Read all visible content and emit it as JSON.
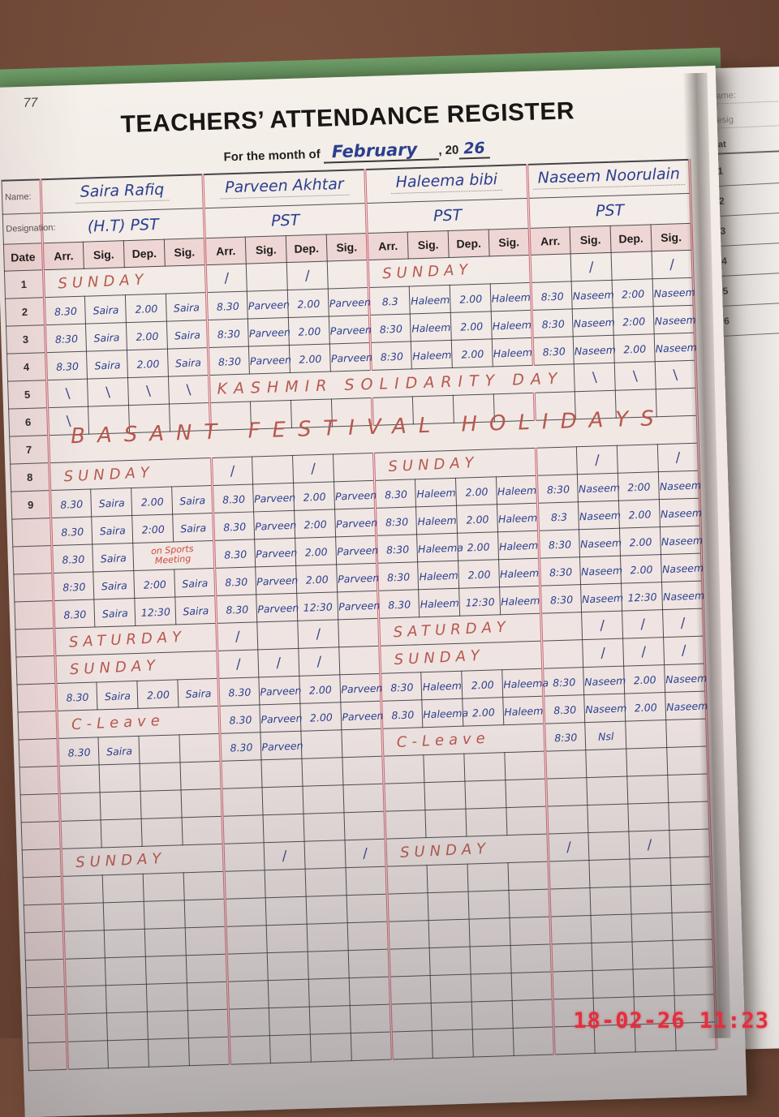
{
  "photo": {
    "page_number": "77",
    "timestamp": "18-02-26 11:23"
  },
  "colors": {
    "ink_blue": "#2b3f8e",
    "holiday_red": "#b8574d",
    "note_red": "#d0493a",
    "timestamp_red": "#e22f3e",
    "cover_green": "#5f8d5b",
    "background_brown": "#6e4736"
  },
  "register": {
    "title": "TEACHERS’ ATTENDANCE REGISTER",
    "month_label": "For the month of",
    "month_value": "February",
    "year_prefix": ", 20",
    "year_value": "26",
    "name_label": "Name:",
    "designation_label": "Designation:",
    "date_header": "Date",
    "col_headers": [
      "Arr.",
      "Sig.",
      "Dep.",
      "Sig."
    ],
    "teachers": [
      {
        "name": "Saira Rafiq",
        "designation": "(H.T)  PST"
      },
      {
        "name": "Parveen Akhtar",
        "designation": "PST"
      },
      {
        "name": "Haleema bibi",
        "designation": "PST"
      },
      {
        "name": "Naseem Noorulain",
        "designation": "PST"
      }
    ],
    "rows": [
      {
        "d": "1",
        "c": [
          {
            "t": "SUNDAY",
            "s": 4,
            "k": "hol"
          },
          "/",
          "",
          "/",
          "",
          {
            "t": "SUNDAY",
            "s": 4,
            "k": "hol"
          },
          "",
          "/",
          "",
          "/"
        ]
      },
      {
        "d": "2",
        "c": [
          "8.30",
          "Saira",
          "2.00",
          "Saira",
          "8.30",
          "Parveen",
          "2.00",
          "Parveen",
          "8.3",
          "Haleem",
          "2.00",
          "Haleem",
          "8:30",
          "Naseem",
          "2:00",
          "Naseem"
        ]
      },
      {
        "d": "3",
        "c": [
          "8:30",
          "Saira",
          "2.00",
          "Saira",
          "8:30",
          "Parveen",
          "2.00",
          "Parveen",
          "8:30",
          "Haleem",
          "2.00",
          "Haleem",
          "8:30",
          "Naseem",
          "2:00",
          "Naseem"
        ]
      },
      {
        "d": "4",
        "c": [
          "8.30",
          "Saira",
          "2.00",
          "Saira",
          "8:30",
          "Parveen",
          "2.00",
          "Parveen",
          "8:30",
          "Haleem",
          "2.00",
          "Haleem",
          "8:30",
          "Naseem",
          "2.00",
          "Naseem"
        ]
      },
      {
        "d": "5",
        "c": [
          "\\",
          "\\",
          "\\",
          "\\",
          {
            "t": "KASHMIR SOLIDARITY DAY",
            "s": 9,
            "k": "holbig"
          },
          "\\",
          "\\",
          "\\"
        ]
      },
      {
        "d": "6",
        "c": [
          "\\",
          "",
          "",
          "",
          "",
          "",
          "",
          "",
          "",
          "",
          "",
          "",
          "",
          "",
          "",
          ""
        ]
      },
      {
        "d": "7",
        "c": [
          {
            "t": "BASANT  FESTIVAL  HOLIDAYS",
            "s": 16,
            "k": "basant"
          }
        ]
      },
      {
        "d": "8",
        "c": [
          {
            "t": "SUNDAY",
            "s": 4,
            "k": "hol"
          },
          "/",
          "",
          "/",
          "",
          {
            "t": "SUNDAY",
            "s": 4,
            "k": "hol"
          },
          "",
          "/",
          "",
          "/"
        ]
      },
      {
        "d": "9",
        "c": [
          "8.30",
          "Saira",
          "2.00",
          "Saira",
          "8.30",
          "Parveen",
          "2.00",
          "Parveen",
          "8.30",
          "Haleem",
          "2.00",
          "Haleem",
          "8:30",
          "Naseem",
          "2:00",
          "Naseem"
        ]
      },
      {
        "d": "",
        "c": [
          "8.30",
          "Saira",
          "2:00",
          "Saira",
          "8.30",
          "Parveen",
          "2:00",
          "Parveen",
          "8:30",
          "Haleem",
          "2.00",
          "Haleem",
          "8:3",
          "Naseem",
          "2.00",
          "Naseem"
        ]
      },
      {
        "d": "",
        "c": [
          "8.30",
          "Saira",
          {
            "t": "on Sports Meeting",
            "s": 2,
            "k": "rednote"
          },
          "8.30",
          "Parveen",
          "2.00",
          "Parveen",
          "8:30",
          "Haleema",
          "2.00",
          "Haleem",
          "8:30",
          "Naseem",
          "2.00",
          "Naseem"
        ]
      },
      {
        "d": "",
        "c": [
          "8:30",
          "Saira",
          "2:00",
          "Saira",
          "8.30",
          "Parveen",
          "2.00",
          "Parveen",
          "8:30",
          "Haleem",
          "2.00",
          "Haleem",
          "8:30",
          "Naseem",
          "2.00",
          "Naseem"
        ]
      },
      {
        "d": "",
        "c": [
          "8.30",
          "Saira",
          "12:30",
          "Saira",
          "8.30",
          "Parveen",
          "12:30",
          "Parveen",
          "8.30",
          "Haleem",
          "12:30",
          "Haleem",
          "8:30",
          "Naseem",
          "12:30",
          "Naseem"
        ]
      },
      {
        "d": "",
        "c": [
          {
            "t": "SATURDAY",
            "s": 4,
            "k": "hol"
          },
          "/",
          "",
          "/",
          "",
          {
            "t": "SATURDAY",
            "s": 4,
            "k": "hol"
          },
          "",
          "/",
          "/",
          "/"
        ]
      },
      {
        "d": "",
        "c": [
          {
            "t": "SUNDAY",
            "s": 4,
            "k": "hol"
          },
          "/",
          "/",
          "/",
          "",
          {
            "t": "SUNDAY",
            "s": 4,
            "k": "hol"
          },
          "",
          "/",
          "/",
          "/"
        ]
      },
      {
        "d": "",
        "c": [
          "8.30",
          "Saira",
          "2.00",
          "Saira",
          "8.30",
          "Parveen",
          "2.00",
          "Parveen",
          "8:30",
          "Haleem",
          "2.00",
          "Haleema",
          "8:30",
          "Naseem",
          "2.00",
          "Naseem"
        ]
      },
      {
        "d": "",
        "c": [
          {
            "t": "C-Leave",
            "s": 4,
            "k": "hol"
          },
          "8.30",
          "Parveen",
          "2.00",
          "Parveen",
          "8.30",
          "Haleema",
          "2.00",
          "Haleem",
          "8.30",
          "Naseem",
          "2.00",
          "Naseem"
        ]
      },
      {
        "d": "",
        "c": [
          "8.30",
          "Saira",
          "",
          "",
          "8.30",
          "Parveen",
          "",
          "",
          {
            "t": "C-Leave",
            "s": 4,
            "k": "hol"
          },
          "8:30",
          "Nsl",
          "",
          ""
        ]
      },
      {
        "d": "",
        "c": [
          "",
          "",
          "",
          "",
          "",
          "",
          "",
          "",
          "",
          "",
          "",
          "",
          "",
          "",
          "",
          ""
        ]
      },
      {
        "d": "",
        "c": [
          "",
          "",
          "",
          "",
          "",
          "",
          "",
          "",
          "",
          "",
          "",
          "",
          "",
          "",
          "",
          ""
        ]
      },
      {
        "d": "",
        "c": [
          "",
          "",
          "",
          "",
          "",
          "",
          "",
          "",
          "",
          "",
          "",
          "",
          "",
          "",
          "",
          ""
        ]
      },
      {
        "d": "",
        "c": [
          {
            "t": "SUNDAY",
            "s": 4,
            "k": "hol"
          },
          "",
          "/",
          "",
          "/",
          {
            "t": "SUNDAY",
            "s": 4,
            "k": "hol"
          },
          "/",
          "",
          "/",
          ""
        ]
      },
      {
        "d": "",
        "c": [
          "",
          "",
          "",
          "",
          "",
          "",
          "",
          "",
          "",
          "",
          "",
          "",
          "",
          "",
          "",
          ""
        ]
      },
      {
        "d": "",
        "c": [
          "",
          "",
          "",
          "",
          "",
          "",
          "",
          "",
          "",
          "",
          "",
          "",
          "",
          "",
          "",
          ""
        ]
      },
      {
        "d": "",
        "c": [
          "",
          "",
          "",
          "",
          "",
          "",
          "",
          "",
          "",
          "",
          "",
          "",
          "",
          "",
          "",
          ""
        ]
      },
      {
        "d": "",
        "c": [
          "",
          "",
          "",
          "",
          "",
          "",
          "",
          "",
          "",
          "",
          "",
          "",
          "",
          "",
          "",
          ""
        ]
      },
      {
        "d": "",
        "c": [
          "",
          "",
          "",
          "",
          "",
          "",
          "",
          "",
          "",
          "",
          "",
          "",
          "",
          "",
          "",
          ""
        ]
      },
      {
        "d": "",
        "c": [
          "",
          "",
          "",
          "",
          "",
          "",
          "",
          "",
          "",
          "",
          "",
          "",
          "",
          "",
          "",
          ""
        ]
      },
      {
        "d": "",
        "c": [
          "",
          "",
          "",
          "",
          "",
          "",
          "",
          "",
          "",
          "",
          "",
          "",
          "",
          "",
          "",
          ""
        ]
      }
    ]
  },
  "side_page": {
    "name_label": "Name:",
    "designation_label": "Desig",
    "date_header": "Dat",
    "dates": [
      "1",
      "2",
      "3",
      "4",
      "5",
      "6"
    ]
  }
}
